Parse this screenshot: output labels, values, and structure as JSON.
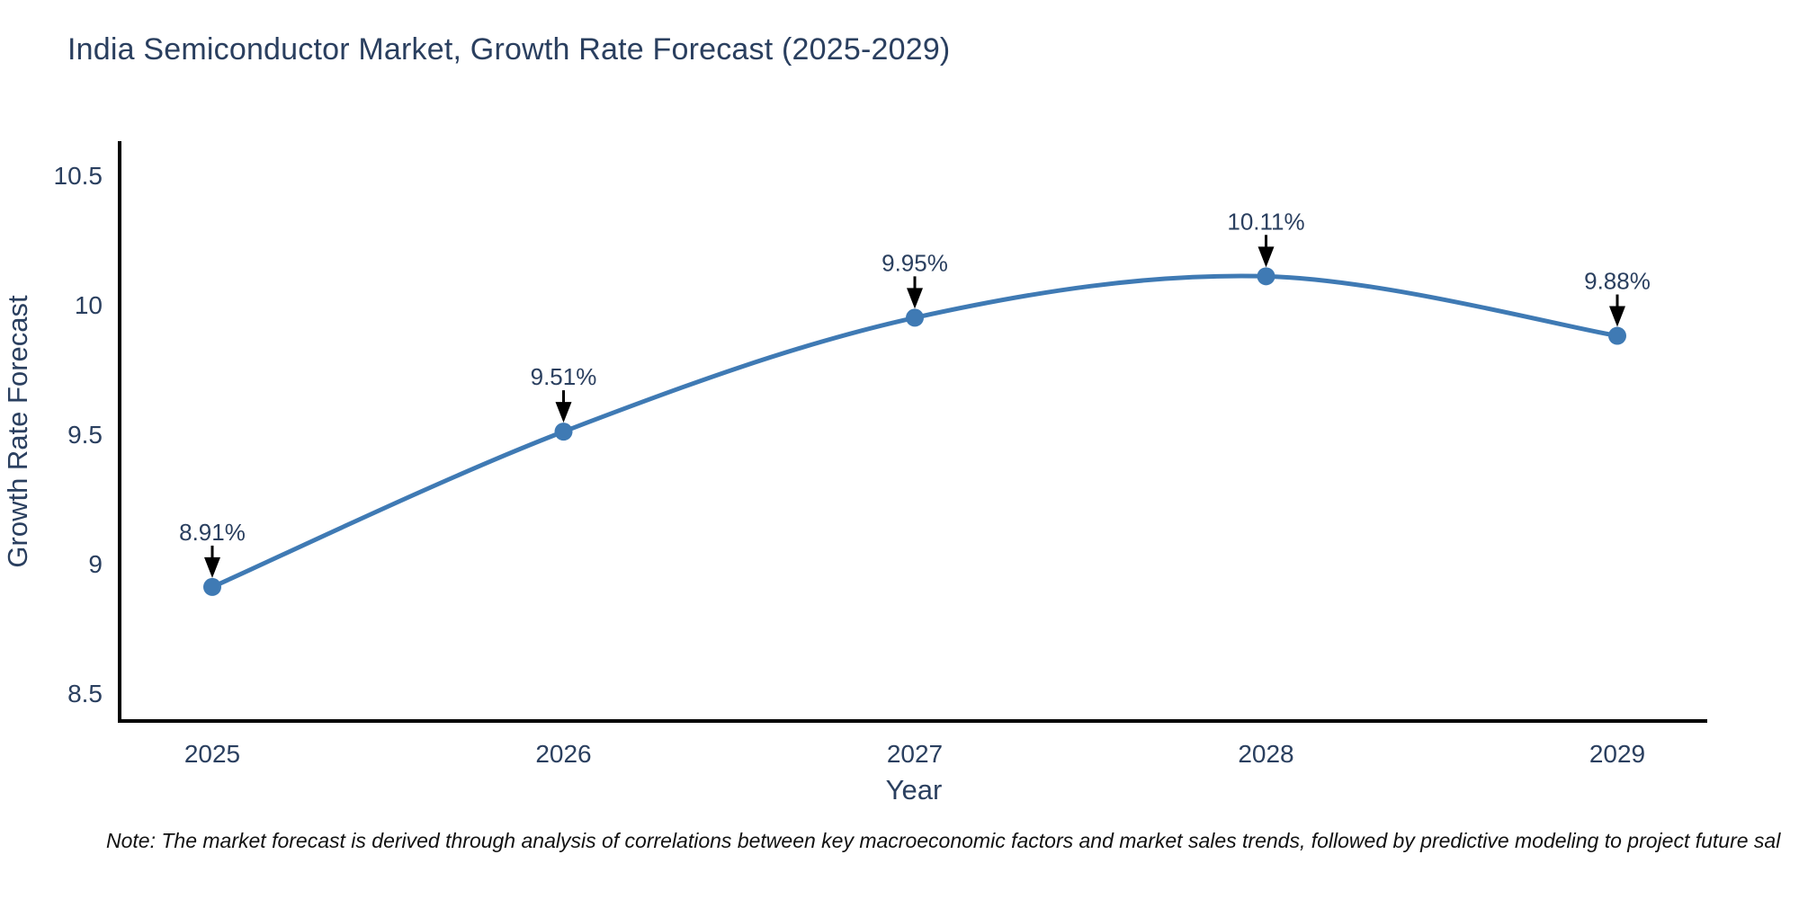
{
  "chart_data": {
    "type": "line",
    "title": "India Semiconductor Market, Growth Rate Forecast (2025-2029)",
    "xlabel": "Year",
    "ylabel": "Growth Rate Forecast",
    "x": [
      "2025",
      "2026",
      "2027",
      "2028",
      "2029"
    ],
    "series": [
      {
        "name": "Growth Rate Forecast",
        "values": [
          8.91,
          9.51,
          9.95,
          10.11,
          9.88
        ]
      }
    ],
    "point_labels": [
      "8.91%",
      "9.51%",
      "9.95%",
      "10.11%",
      "9.88%"
    ],
    "yticks": [
      8.5,
      9,
      9.5,
      10,
      10.5
    ],
    "ylim": [
      8.39,
      10.63
    ],
    "grid": false,
    "legend_position": "none",
    "line_shape": "spline",
    "line_color": "#3f7ab4",
    "marker_color": "#3f7ab4",
    "arrow_color": "#000000",
    "axis_color": "#000000",
    "text_color": "#2a3f5f",
    "note_color": "#111111",
    "note": "Note: The market forecast is derived through analysis of correlations between key macroeconomic factors and market sales trends, followed by predictive modeling to project future sal"
  }
}
